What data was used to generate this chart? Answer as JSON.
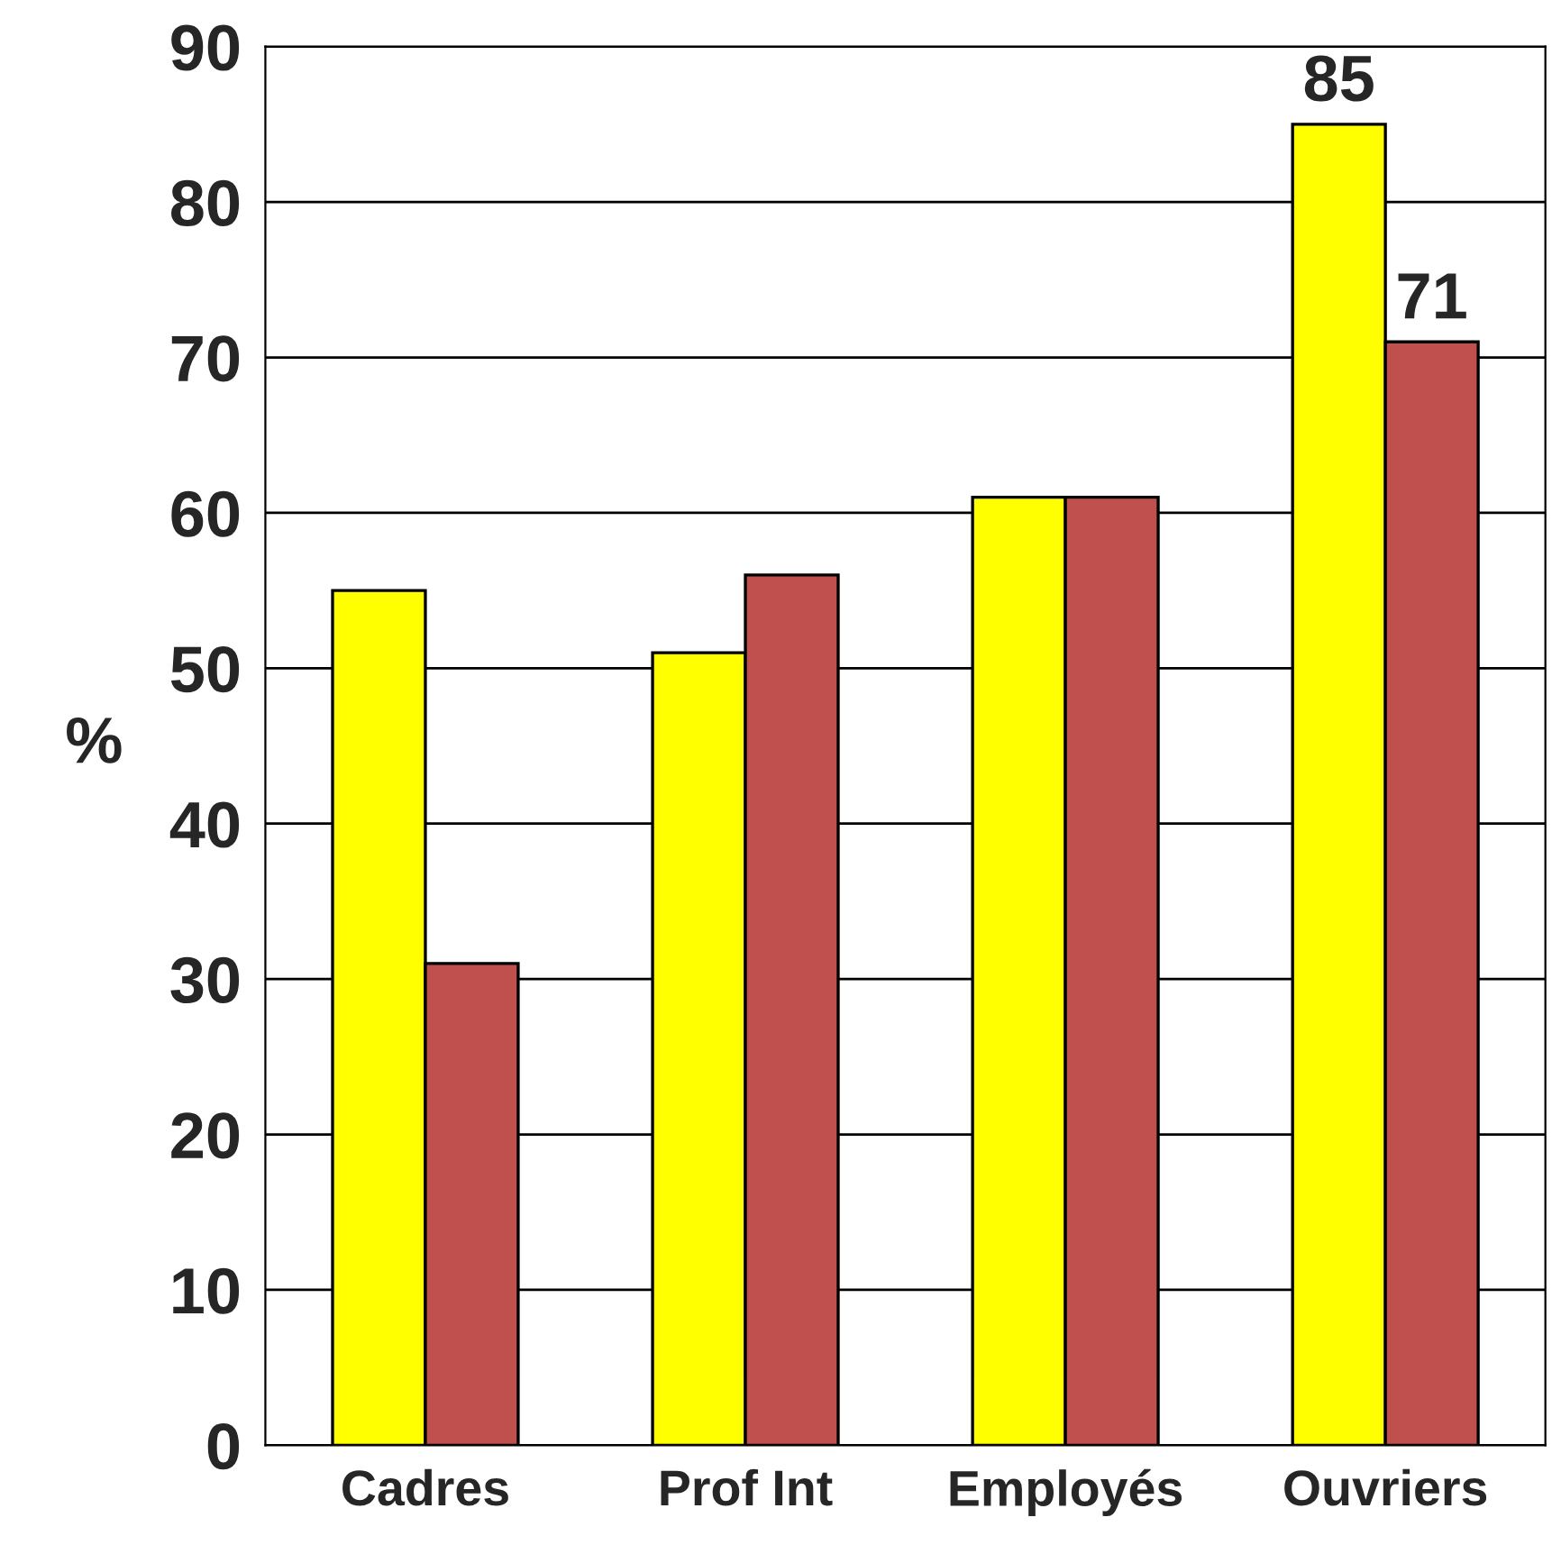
{
  "chart_data": {
    "type": "bar",
    "ylabel": "%",
    "categories": [
      "Cadres",
      "Prof Int",
      "Employés",
      "Ouvriers"
    ],
    "series": [
      {
        "color": "#ffff00",
        "values": [
          55,
          51,
          61,
          85
        ],
        "value_labels": [
          null,
          null,
          null,
          "85"
        ]
      },
      {
        "color": "#c0504d",
        "values": [
          31,
          56,
          61,
          71
        ],
        "value_labels": [
          null,
          null,
          null,
          "71"
        ]
      }
    ],
    "ylim": [
      0,
      90
    ],
    "yticks": [
      0,
      10,
      20,
      30,
      40,
      50,
      60,
      70,
      80,
      90
    ],
    "grid": "y",
    "legend": false
  }
}
